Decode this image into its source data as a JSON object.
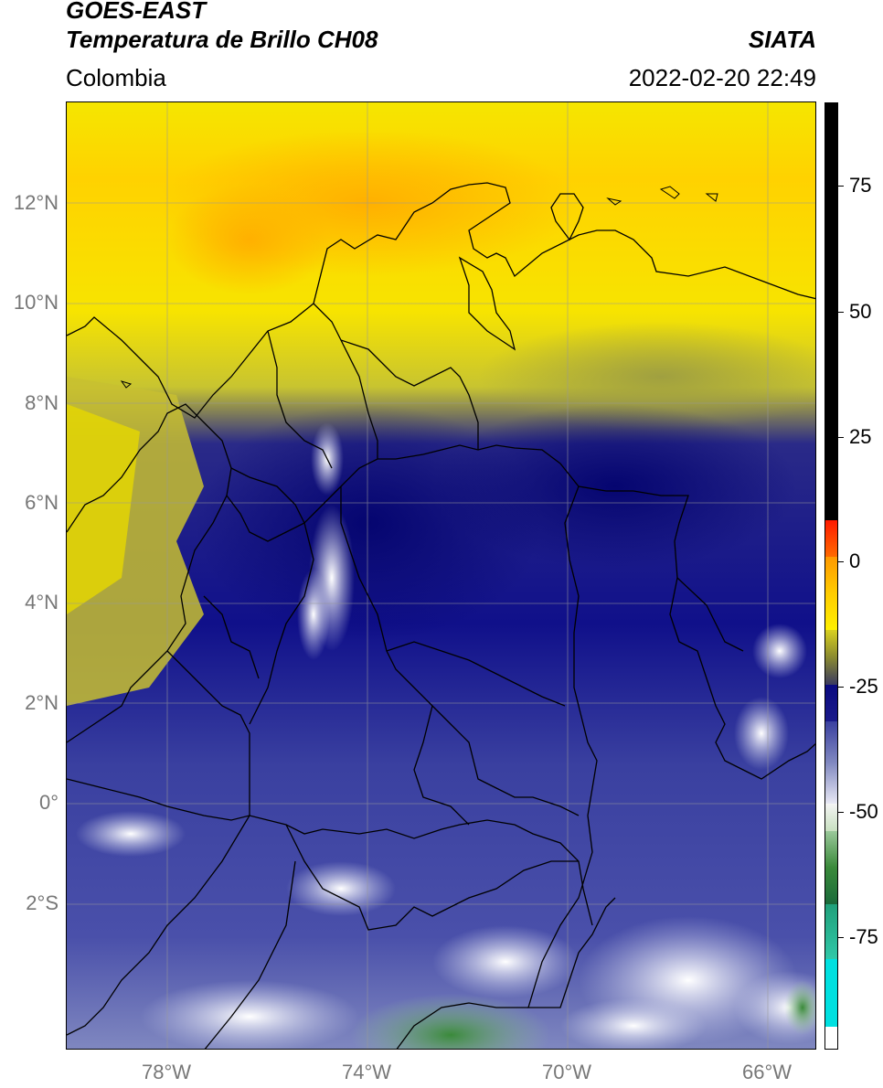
{
  "header": {
    "satellite": "GOES-EAST",
    "product": "Temperatura de Brillo CH08",
    "region": "Colombia",
    "brand": "SIATA",
    "datetime": "2022-02-20 22:49"
  },
  "axes": {
    "lat_labels": [
      "12°N",
      "10°N",
      "8°N",
      "6°N",
      "4°N",
      "2°N",
      "0°",
      "2°S"
    ],
    "lon_labels": [
      "78°W",
      "74°W",
      "70°W",
      "66°W"
    ]
  },
  "colorbar": {
    "labels": [
      "75",
      "50",
      "25",
      "0",
      "-25",
      "-50",
      "-75"
    ],
    "colors": {
      "hot": "#000000",
      "red": "#ff2200",
      "orange": "#ff9900",
      "yellow": "#ffee00",
      "olive": "#8a8a30",
      "navy": "#0a0a80",
      "blue": "#4a50a8",
      "white": "#f0f0f0",
      "green": "#2f7a2f",
      "teal": "#30c8a8",
      "cyan": "#00e0e0"
    }
  }
}
